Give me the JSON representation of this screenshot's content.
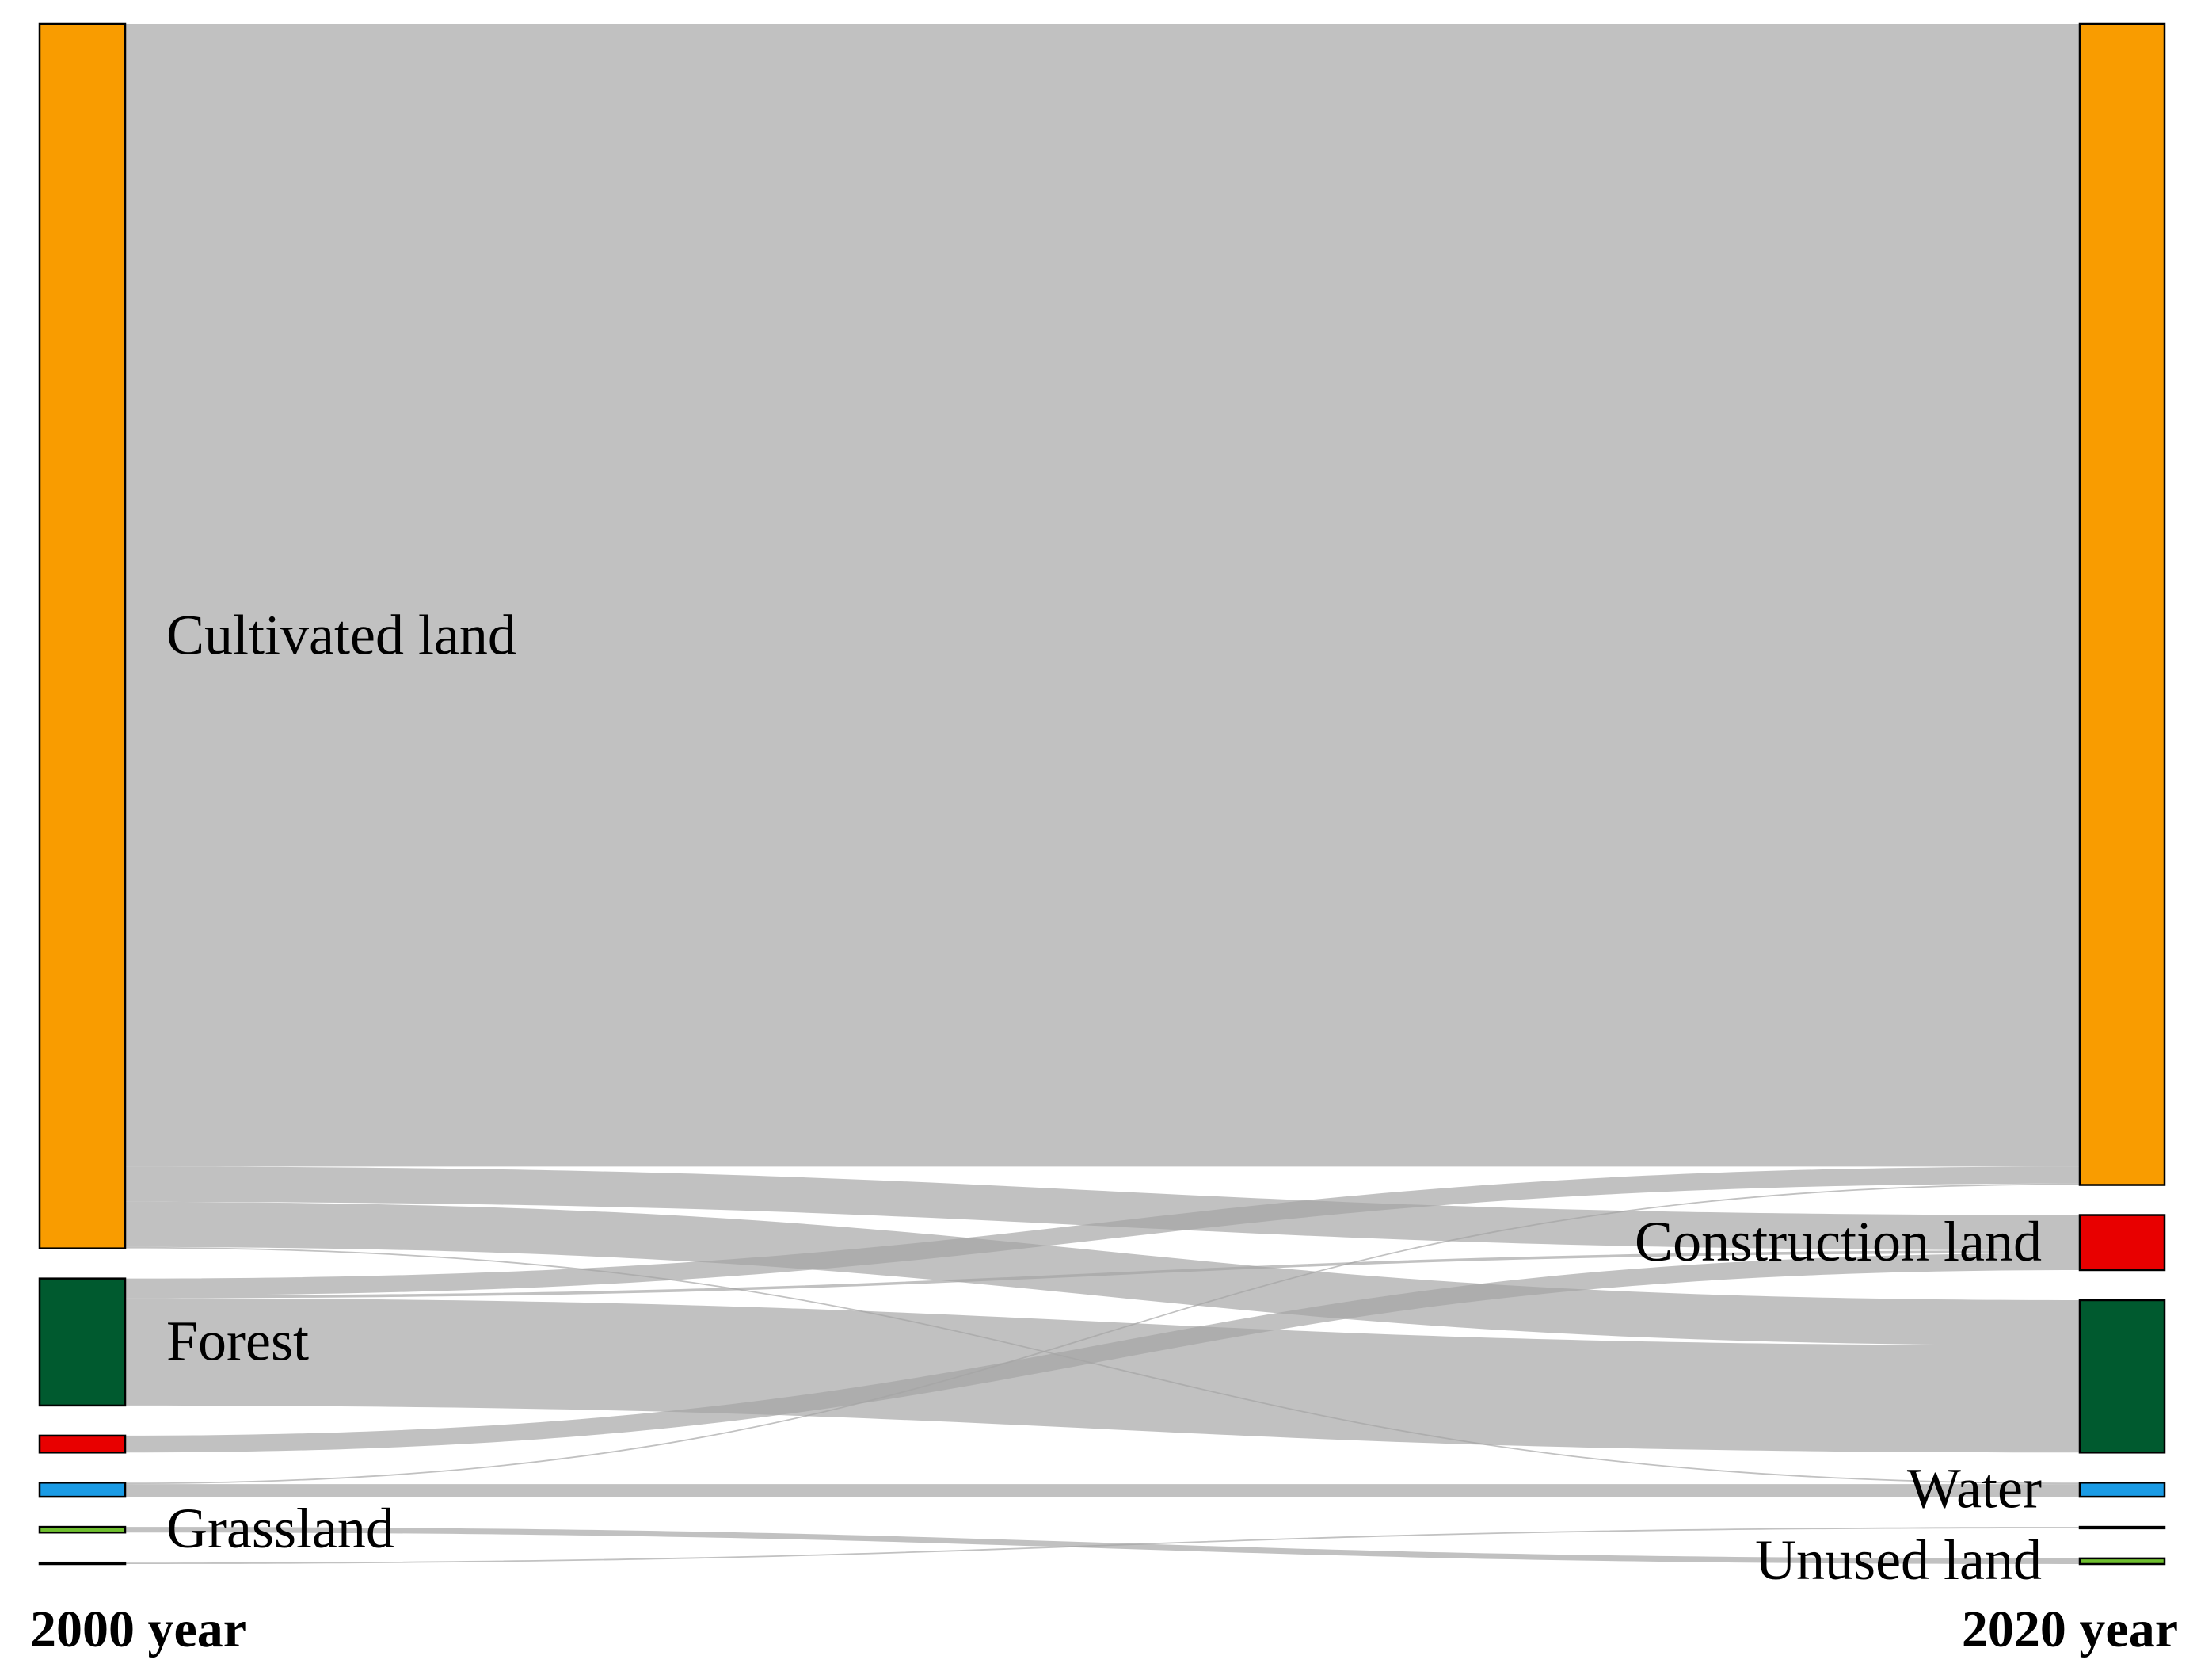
{
  "chart_data": {
    "type": "sankey",
    "left_title": "2000 year",
    "right_title": "2020 year",
    "link_color": "#a3a3a3",
    "nodes_left": [
      {
        "name": "Cultivated land",
        "color": "#f99c00"
      },
      {
        "name": "Forest",
        "color": "#005a2f"
      },
      {
        "name": null,
        "color": "#e80000"
      },
      {
        "name": null,
        "color": "#1a9be5"
      },
      {
        "name": "Grassland",
        "color": "#6fbf2f"
      },
      {
        "name": null,
        "color": "#ffffff"
      }
    ],
    "nodes_right": [
      {
        "name": null,
        "color": "#f99c00"
      },
      {
        "name": "Construction land",
        "color": "#e80000"
      },
      {
        "name": null,
        "color": "#005a2f"
      },
      {
        "name": "Water",
        "color": "#1a9be5"
      },
      {
        "name": null,
        "color": "#ffffff"
      },
      {
        "name": "Unused land",
        "color": "#6fbf2f"
      }
    ],
    "links": [
      {
        "source": 0,
        "target": 0,
        "value": 810
      },
      {
        "source": 0,
        "target": 1,
        "value": 25
      },
      {
        "source": 0,
        "target": 2,
        "value": 32
      },
      {
        "source": 0,
        "target": 3,
        "value": 1
      },
      {
        "source": 1,
        "target": 0,
        "value": 12
      },
      {
        "source": 1,
        "target": 1,
        "value": 2
      },
      {
        "source": 1,
        "target": 2,
        "value": 76
      },
      {
        "source": 2,
        "target": 1,
        "value": 12
      },
      {
        "source": 3,
        "target": 0,
        "value": 1
      },
      {
        "source": 3,
        "target": 3,
        "value": 9
      },
      {
        "source": 4,
        "target": 5,
        "value": 4
      },
      {
        "source": 5,
        "target": 4,
        "value": 1
      }
    ]
  }
}
